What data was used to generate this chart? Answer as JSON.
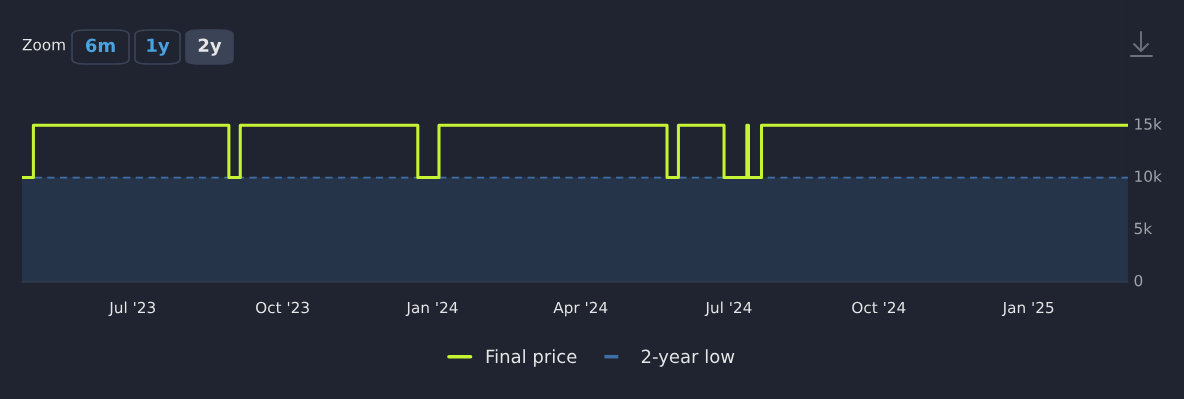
{
  "chart_data": {
    "type": "step",
    "x": [
      "2023-04-24",
      "2023-05-01",
      "2023-08-29",
      "2023-09-05",
      "2023-12-23",
      "2024-01-05",
      "2024-05-24",
      "2024-05-31",
      "2024-06-28",
      "2024-07-12",
      "2024-07-13",
      "2024-07-21",
      "2025-03-03"
    ],
    "series": [
      {
        "name": "Final price",
        "color": "#c6f432",
        "line_style": "solid",
        "values": [
          10000,
          15000,
          10000,
          15000,
          10000,
          15000,
          10000,
          15000,
          10000,
          15000,
          10000,
          15000,
          15000
        ]
      },
      {
        "name": "2-year low",
        "type": "area",
        "color": "#3f6fa6",
        "line_style": "dashed",
        "x": [
          "2023-04-24",
          "2025-03-03"
        ],
        "values": [
          10000,
          10000
        ]
      }
    ],
    "xlim": [
      "2023-04-24",
      "2025-03-03"
    ],
    "xticks": [
      {
        "value": "2023-07-01",
        "label": "Jul '23"
      },
      {
        "value": "2023-10-01",
        "label": "Oct '23"
      },
      {
        "value": "2024-01-01",
        "label": "Jan '24"
      },
      {
        "value": "2024-04-01",
        "label": "Apr '24"
      },
      {
        "value": "2024-07-01",
        "label": "Jul '24"
      },
      {
        "value": "2024-10-01",
        "label": "Oct '24"
      },
      {
        "value": "2025-01-01",
        "label": "Jan '25"
      }
    ],
    "ylim": [
      0,
      27000
    ],
    "yticks": [
      0,
      {
        "value": 5000,
        "label": "5k"
      },
      {
        "value": 10000,
        "label": "10k"
      },
      {
        "value": 15000,
        "label": "15k"
      }
    ],
    "grid": false,
    "legend": "bottom",
    "annotations": [
      "Zoom",
      "6m",
      "1y",
      "2y"
    ]
  }
}
